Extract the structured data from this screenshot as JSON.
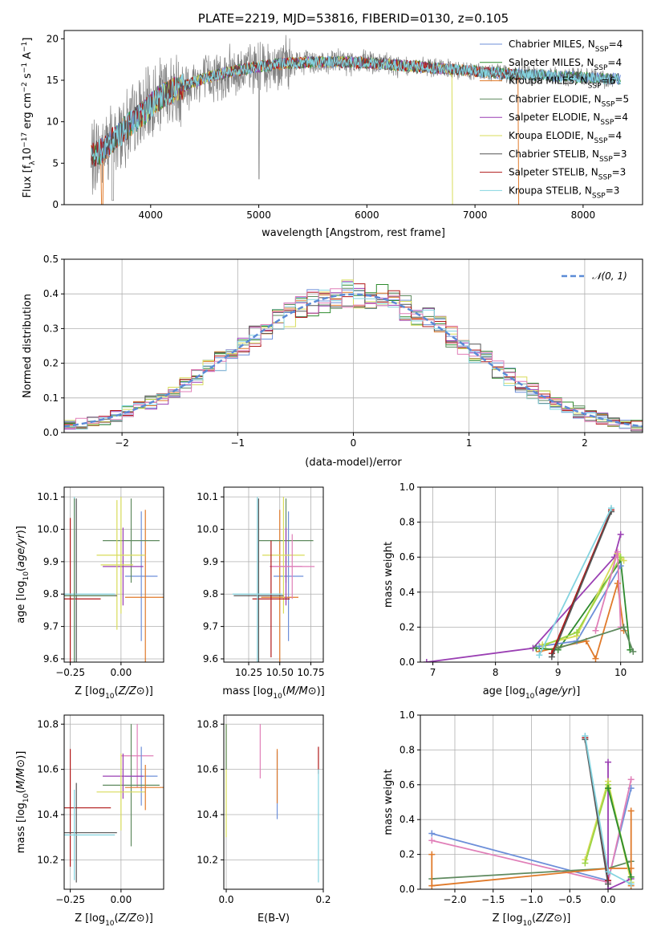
{
  "colors": {
    "chabrier_miles": "#6d8fd9",
    "salpeter_miles": "#2e8b2e",
    "kroupa_miles": "#e07a2a",
    "chabrier_elodie": "#5f8a5f",
    "salpeter_elodie": "#9a3fb3",
    "kroupa_elodie": "#d8dc5a",
    "chabrier_stelib": "#555555",
    "salpeter_stelib": "#b01818",
    "kroupa_stelib": "#84d4e0",
    "observed": "#808080",
    "pink": "#e07fb8",
    "lime": "#9bd444",
    "normal": "#5b8bd6",
    "grid": "#b0b0b0"
  },
  "chart_data": [
    {
      "id": "spectrum",
      "type": "line",
      "title": "PLATE=2219, MJD=53816, FIBERID=0130, z=0.105",
      "xlabel": "wavelength [Angstrom, rest frame]",
      "ylabel": "Flux [f_λ 10^-17 erg cm^-2 s^-1 A^-1]",
      "xlim": [
        3200,
        8550
      ],
      "ylim": [
        0,
        21
      ],
      "xticks": [
        "4000",
        "5000",
        "6000",
        "7000",
        "8000"
      ],
      "yticks": [
        "0",
        "5",
        "10",
        "15",
        "20"
      ],
      "grid": false,
      "legend_position": "right",
      "continuum": {
        "x": [
          3450,
          3550,
          3650,
          3750,
          3850,
          3950,
          4050,
          4150,
          4250,
          4400,
          4600,
          4800,
          5000,
          5200,
          5500,
          5800,
          6100,
          6400,
          6700,
          7000,
          7300,
          7600,
          7900,
          8200,
          8350
        ],
        "y": [
          5.8,
          6.5,
          7.8,
          9.0,
          10.2,
          11.2,
          12.6,
          13.4,
          14.0,
          14.8,
          15.6,
          16.2,
          16.6,
          17.0,
          17.2,
          17.2,
          17.0,
          16.7,
          16.4,
          16.1,
          15.8,
          15.6,
          15.4,
          15.2,
          15.2
        ]
      },
      "legend": [
        {
          "label": "Chabrier MILES, N_SSP=4",
          "color_key": "chabrier_miles"
        },
        {
          "label": "Salpeter MILES, N_SSP=4",
          "color_key": "salpeter_miles"
        },
        {
          "label": "Kroupa MILES, N_SSP=6",
          "color_key": "kroupa_miles"
        },
        {
          "label": "Chabrier ELODIE, N_SSP=5",
          "color_key": "chabrier_elodie"
        },
        {
          "label": "Salpeter ELODIE, N_SSP=4",
          "color_key": "salpeter_elodie"
        },
        {
          "label": "Kroupa ELODIE, N_SSP=4",
          "color_key": "kroupa_elodie"
        },
        {
          "label": "Chabrier STELIB, N_SSP=3",
          "color_key": "chabrier_stelib"
        },
        {
          "label": "Salpeter STELIB, N_SSP=3",
          "color_key": "salpeter_stelib"
        },
        {
          "label": "Kroupa STELIB, N_SSP=3",
          "color_key": "kroupa_stelib"
        }
      ]
    },
    {
      "id": "residuals",
      "type": "line",
      "xlabel": "(data-model)/error",
      "ylabel": "Normed distribution",
      "xlim": [
        -2.5,
        2.5
      ],
      "ylim": [
        0,
        0.5
      ],
      "xticks": [
        "−2",
        "−1",
        "0",
        "1",
        "2"
      ],
      "yticks": [
        "0.0",
        "0.1",
        "0.2",
        "0.3",
        "0.4",
        "0.5"
      ],
      "grid": true,
      "legend_position": "top-right",
      "legend": [
        {
          "label": "𝒩(0, 1)",
          "color_key": "normal"
        }
      ],
      "bin_width": 0.1,
      "bins_start": -2.5,
      "normal_mean": 0,
      "normal_sigma": 1
    },
    {
      "id": "age_vs_Z",
      "type": "scatter",
      "xlabel": "Z [log10(Z/Z⊙)]",
      "ylabel": "age [log10(age/yr)]",
      "xlim": [
        -0.28,
        0.21
      ],
      "ylim": [
        9.59,
        10.13
      ],
      "xticks": [
        "−0.25",
        "0.00"
      ],
      "yticks": [
        "9.6",
        "9.7",
        "9.8",
        "9.9",
        "10.0",
        "10.1"
      ],
      "grid": true,
      "points": [
        {
          "color_key": "chabrier_miles",
          "x": 0.1,
          "xerr": 0.08,
          "y": 9.855,
          "yerr": 0.2
        },
        {
          "color_key": "kroupa_miles",
          "x": 0.12,
          "xerr": 0.1,
          "y": 9.79,
          "yerr": 0.27
        },
        {
          "color_key": "chabrier_elodie",
          "x": 0.05,
          "xerr": 0.14,
          "y": 9.965,
          "yerr": 0.13
        },
        {
          "color_key": "salpeter_elodie",
          "x": 0.01,
          "xerr": 0.1,
          "y": 9.885,
          "yerr": 0.12
        },
        {
          "color_key": "kroupa_elodie",
          "x": 0.0,
          "xerr": 0.12,
          "y": 9.92,
          "yerr": 0.18
        },
        {
          "color_key": "kroupa_elodie",
          "x": -0.02,
          "xerr": 0.08,
          "y": 9.89,
          "yerr": 0.2
        },
        {
          "color_key": "chabrier_stelib",
          "x": -0.22,
          "xerr": 0.2,
          "y": 9.795,
          "yerr": 0.3
        },
        {
          "color_key": "salpeter_stelib",
          "x": -0.25,
          "xerr": 0.15,
          "y": 9.785,
          "yerr": 0.25
        },
        {
          "color_key": "kroupa_stelib",
          "x": -0.23,
          "xerr": 0.2,
          "y": 9.8,
          "yerr": 0.3
        },
        {
          "color_key": "chabrier_elodie",
          "x": -0.23,
          "xerr": 0.2,
          "y": 9.795,
          "yerr": 0.3
        }
      ]
    },
    {
      "id": "age_vs_mass",
      "type": "scatter",
      "xlabel": "mass [log10(M/M⊙)]",
      "ylabel": "",
      "xlim": [
        10.05,
        10.85
      ],
      "ylim": [
        9.59,
        10.13
      ],
      "xticks": [
        "10.25",
        "10.50",
        "10.75"
      ],
      "yticks": [
        "9.6",
        "9.7",
        "9.8",
        "9.9",
        "10.0",
        "10.1"
      ],
      "grid": true,
      "points": [
        {
          "color_key": "chabrier_miles",
          "x": 10.57,
          "xerr": 0.12,
          "y": 9.855,
          "yerr": 0.2
        },
        {
          "color_key": "kroupa_miles",
          "x": 10.5,
          "xerr": 0.15,
          "y": 9.79,
          "yerr": 0.27
        },
        {
          "color_key": "chabrier_elodie",
          "x": 10.55,
          "xerr": 0.22,
          "y": 9.965,
          "yerr": 0.13
        },
        {
          "color_key": "salpeter_elodie",
          "x": 10.55,
          "xerr": 0.13,
          "y": 9.885,
          "yerr": 0.12
        },
        {
          "color_key": "kroupa_elodie",
          "x": 10.53,
          "xerr": 0.17,
          "y": 9.92,
          "yerr": 0.18
        },
        {
          "color_key": "pink",
          "x": 10.6,
          "xerr": 0.18,
          "y": 9.885,
          "yerr": 0.1
        },
        {
          "color_key": "chabrier_stelib",
          "x": 10.33,
          "xerr": 0.2,
          "y": 9.795,
          "yerr": 0.3
        },
        {
          "color_key": "salpeter_stelib",
          "x": 10.43,
          "xerr": 0.15,
          "y": 9.785,
          "yerr": 0.18
        },
        {
          "color_key": "kroupa_stelib",
          "x": 10.32,
          "xerr": 0.2,
          "y": 9.8,
          "yerr": 0.3
        }
      ]
    },
    {
      "id": "weight_vs_age",
      "type": "line",
      "xlabel": "age [log10(age/yr)]",
      "ylabel": "mass weight",
      "xlim": [
        6.8,
        10.35
      ],
      "ylim": [
        0,
        1
      ],
      "xticks": [
        "7",
        "8",
        "9",
        "10"
      ],
      "yticks": [
        "0.0",
        "0.2",
        "0.4",
        "0.6",
        "0.8",
        "1.0"
      ],
      "grid": true,
      "series": [
        {
          "color_key": "salpeter_elodie",
          "x": [
            6.9,
            8.6,
            9.9,
            10.0
          ],
          "y": [
            0.0,
            0.08,
            0.6,
            0.73
          ]
        },
        {
          "color_key": "kroupa_miles",
          "x": [
            8.7,
            9.45,
            9.6,
            9.95,
            10.05
          ],
          "y": [
            0.06,
            0.12,
            0.02,
            0.45,
            0.18
          ]
        },
        {
          "color_key": "salpeter_miles",
          "x": [
            8.65,
            9.0,
            10.0,
            10.15
          ],
          "y": [
            0.08,
            0.07,
            0.58,
            0.07
          ]
        },
        {
          "color_key": "chabrier_miles",
          "x": [
            8.7,
            9.3,
            10.0
          ],
          "y": [
            0.09,
            0.12,
            0.55
          ]
        },
        {
          "color_key": "kroupa_elodie",
          "x": [
            8.75,
            9.3,
            9.95,
            10.05
          ],
          "y": [
            0.1,
            0.15,
            0.62,
            0.58
          ]
        },
        {
          "color_key": "lime",
          "x": [
            8.8,
            9.3,
            10.0
          ],
          "y": [
            0.1,
            0.17,
            0.6
          ]
        },
        {
          "color_key": "salpeter_stelib",
          "x": [
            8.9,
            9.85
          ],
          "y": [
            0.05,
            0.87
          ]
        },
        {
          "color_key": "chabrier_stelib",
          "x": [
            8.9,
            9.85
          ],
          "y": [
            0.03,
            0.86
          ]
        },
        {
          "color_key": "kroupa_stelib",
          "x": [
            8.7,
            9.85
          ],
          "y": [
            0.04,
            0.88
          ]
        },
        {
          "color_key": "pink",
          "x": [
            9.6,
            9.95,
            10.0
          ],
          "y": [
            0.18,
            0.63,
            0.2
          ]
        },
        {
          "color_key": "chabrier_elodie",
          "x": [
            9.0,
            10.05,
            10.2
          ],
          "y": [
            0.08,
            0.2,
            0.06
          ]
        }
      ]
    },
    {
      "id": "mass_vs_Z",
      "type": "scatter",
      "xlabel": "Z [log10(Z/Z⊙)]",
      "ylabel": "mass [log10(M/M⊙)]",
      "xlim": [
        -0.28,
        0.21
      ],
      "ylim": [
        10.07,
        10.84
      ],
      "xticks": [
        "−0.25",
        "0.00"
      ],
      "yticks": [
        "10.2",
        "10.4",
        "10.6",
        "10.8"
      ],
      "grid": true,
      "points": [
        {
          "color_key": "pink",
          "x": 0.08,
          "xerr": 0.08,
          "y": 10.66,
          "yerr": 0.14
        },
        {
          "color_key": "chabrier_miles",
          "x": 0.1,
          "xerr": 0.08,
          "y": 10.57,
          "yerr": 0.13
        },
        {
          "color_key": "chabrier_elodie",
          "x": 0.05,
          "xerr": 0.14,
          "y": 10.53,
          "yerr": 0.27
        },
        {
          "color_key": "salpeter_elodie",
          "x": 0.01,
          "xerr": 0.1,
          "y": 10.57,
          "yerr": 0.1
        },
        {
          "color_key": "kroupa_elodie",
          "x": 0.0,
          "xerr": 0.12,
          "y": 10.5,
          "yerr": 0.17
        },
        {
          "color_key": "kroupa_miles",
          "x": 0.12,
          "xerr": 0.1,
          "y": 10.52,
          "yerr": 0.1
        },
        {
          "color_key": "salpeter_stelib",
          "x": -0.25,
          "xerr": 0.2,
          "y": 10.43,
          "yerr": 0.26
        },
        {
          "color_key": "chabrier_stelib",
          "x": -0.22,
          "xerr": 0.2,
          "y": 10.32,
          "yerr": 0.22
        },
        {
          "color_key": "kroupa_stelib",
          "x": -0.23,
          "xerr": 0.2,
          "y": 10.31,
          "yerr": 0.2
        }
      ]
    },
    {
      "id": "mass_vs_ebv",
      "type": "scatter",
      "xlabel": "E(B-V)",
      "ylabel": "",
      "xlim": [
        -0.005,
        0.2
      ],
      "ylim": [
        10.07,
        10.84
      ],
      "xticks": [
        "0.0",
        "0.2"
      ],
      "yticks": [
        "10.2",
        "10.4",
        "10.6",
        "10.8"
      ],
      "grid": true,
      "points": [
        {
          "color_key": "kroupa_elodie",
          "x": 0.0,
          "xerr": 0,
          "y": 10.55,
          "yerr": 0.25
        },
        {
          "color_key": "chabrier_elodie",
          "x": 0.0,
          "xerr": 0,
          "y": 10.7,
          "yerr": 0.1
        },
        {
          "color_key": "pink",
          "x": 0.07,
          "xerr": 0,
          "y": 10.68,
          "yerr": 0.12
        },
        {
          "color_key": "chabrier_miles",
          "x": 0.105,
          "xerr": 0,
          "y": 10.53,
          "yerr": 0.15
        },
        {
          "color_key": "kroupa_miles",
          "x": 0.105,
          "xerr": 0,
          "y": 10.57,
          "yerr": 0.12
        },
        {
          "color_key": "salpeter_stelib",
          "x": 0.19,
          "xerr": 0,
          "y": 10.64,
          "yerr": 0.06
        },
        {
          "color_key": "kroupa_stelib",
          "x": 0.19,
          "xerr": 0,
          "y": 10.35,
          "yerr": 0.25
        }
      ]
    },
    {
      "id": "weight_vs_Z",
      "type": "line",
      "xlabel": "Z [log10(Z/Z⊙)]",
      "ylabel": "mass weight",
      "xlim": [
        -2.45,
        0.45
      ],
      "ylim": [
        0,
        1
      ],
      "xticks": [
        "−2.0",
        "−1.5",
        "−1.0",
        "−0.5",
        "0.0"
      ],
      "yticks": [
        "0.0",
        "0.2",
        "0.4",
        "0.6",
        "0.8",
        "1.0"
      ],
      "grid": true,
      "series": [
        {
          "color_key": "chabrier_miles",
          "x": [
            -2.3,
            0.0,
            0.3
          ],
          "y": [
            0.32,
            0.05,
            0.58
          ]
        },
        {
          "color_key": "pink",
          "x": [
            -2.3,
            0.0,
            0.3
          ],
          "y": [
            0.28,
            0.04,
            0.63
          ]
        },
        {
          "color_key": "chabrier_elodie",
          "x": [
            -2.3,
            0.0,
            0.3
          ],
          "y": [
            0.06,
            0.12,
            0.16
          ]
        },
        {
          "color_key": "kroupa_miles",
          "x": [
            -2.3,
            -2.3,
            0.0,
            0.3,
            0.3,
            0.3
          ],
          "y": [
            0.2,
            0.02,
            0.12,
            0.12,
            0.45,
            0.02
          ]
        },
        {
          "color_key": "salpeter_elodie",
          "x": [
            0.0,
            0.0,
            0.3
          ],
          "y": [
            0.73,
            0.0,
            0.06
          ]
        },
        {
          "color_key": "kroupa_elodie",
          "x": [
            -0.3,
            0.0,
            0.3
          ],
          "y": [
            0.17,
            0.62,
            0.04
          ]
        },
        {
          "color_key": "lime",
          "x": [
            -0.3,
            0.0,
            0.3
          ],
          "y": [
            0.15,
            0.6,
            0.07
          ]
        },
        {
          "color_key": "salpeter_miles",
          "x": [
            0.0,
            0.3
          ],
          "y": [
            0.58,
            0.07
          ]
        },
        {
          "color_key": "salpeter_stelib",
          "x": [
            -0.3,
            0.0
          ],
          "y": [
            0.87,
            0.05
          ]
        },
        {
          "color_key": "chabrier_stelib",
          "x": [
            -0.3,
            0.0
          ],
          "y": [
            0.86,
            0.03
          ]
        },
        {
          "color_key": "kroupa_stelib",
          "x": [
            -0.3,
            0.0,
            0.3
          ],
          "y": [
            0.88,
            0.1,
            0.03
          ]
        }
      ]
    }
  ]
}
